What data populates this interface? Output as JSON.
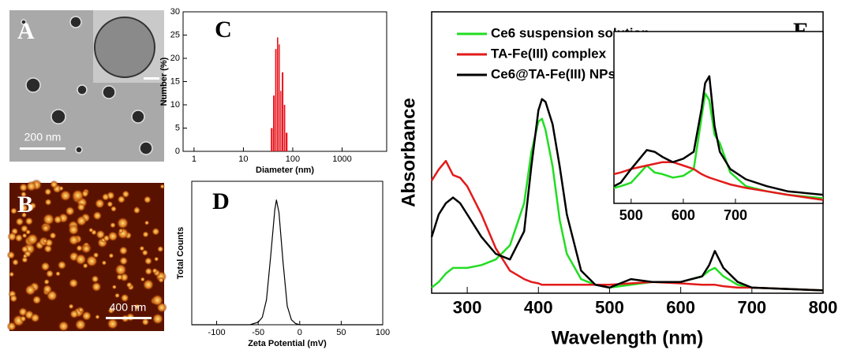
{
  "images": [
    {
      "label": "A",
      "scale_bar": "200 nm"
    },
    {
      "label": "B",
      "scale_bar": "400 nm"
    }
  ],
  "chart_data": [
    {
      "type": "histogram",
      "label": "C",
      "x_label": "Diameter (nm)",
      "y_label": "Number (%)",
      "xscale": "log",
      "xlim": [
        0.6,
        8000
      ],
      "xticks": [
        1,
        10,
        100,
        1000
      ],
      "ylim": [
        0,
        30
      ],
      "yticks": [
        0,
        5,
        10,
        15,
        20,
        25,
        30
      ],
      "bins": [
        36,
        40,
        44,
        48,
        52,
        56,
        60,
        66,
        72,
        80
      ],
      "values": [
        5,
        12,
        22,
        24.5,
        23,
        13,
        17,
        10,
        4
      ],
      "color": "#e8111a"
    },
    {
      "type": "line",
      "label": "D",
      "x_label": "Zeta Potential (mV)",
      "y_label": "Total Counts",
      "xlim": [
        -130,
        100
      ],
      "xticks": [
        -100,
        -50,
        0,
        50,
        100
      ],
      "ylim": [
        0,
        1.15
      ],
      "x": [
        -130,
        -60,
        -50,
        -45,
        -40,
        -35,
        -30,
        -28,
        -25,
        -20,
        -15,
        -10,
        -5,
        0,
        100
      ],
      "series": [
        {
          "color": "#000000",
          "values": [
            0,
            0,
            0.02,
            0.06,
            0.2,
            0.55,
            0.92,
            1,
            0.9,
            0.5,
            0.15,
            0.04,
            0.01,
            0,
            0
          ]
        }
      ]
    },
    {
      "type": "line",
      "label": "E",
      "x_label": "Wavelength (nm)",
      "y_label": "Absorbance",
      "xlim": [
        250,
        800
      ],
      "xticks": [
        300,
        400,
        500,
        600,
        700,
        800
      ],
      "ylim": [
        0,
        1
      ],
      "legend": "upper left",
      "x": [
        250,
        260,
        270,
        280,
        290,
        300,
        320,
        340,
        360,
        380,
        390,
        400,
        405,
        410,
        420,
        430,
        440,
        460,
        480,
        500,
        530,
        560,
        600,
        630,
        640,
        648,
        660,
        680,
        700,
        750,
        800
      ],
      "series": [
        {
          "name": "Ce6 suspension solution",
          "color": "#22dd22",
          "values": [
            0.02,
            0.04,
            0.07,
            0.09,
            0.09,
            0.09,
            0.1,
            0.12,
            0.17,
            0.32,
            0.5,
            0.61,
            0.62,
            0.58,
            0.45,
            0.26,
            0.14,
            0.05,
            0.03,
            0.02,
            0.03,
            0.04,
            0.04,
            0.06,
            0.08,
            0.09,
            0.06,
            0.03,
            0.02,
            0.015,
            0.01
          ]
        },
        {
          "name": "TA-Fe(III) complex",
          "color": "#e31a1a",
          "values": [
            0.4,
            0.44,
            0.47,
            0.42,
            0.41,
            0.38,
            0.28,
            0.16,
            0.08,
            0.05,
            0.04,
            0.035,
            0.03,
            0.03,
            0.03,
            0.03,
            0.03,
            0.03,
            0.03,
            0.03,
            0.035,
            0.04,
            0.035,
            0.03,
            0.03,
            0.03,
            0.025,
            0.02,
            0.02,
            0.015,
            0.01
          ]
        },
        {
          "name": "Ce6@TA-Fe(III) NPs",
          "color": "#000000",
          "values": [
            0.2,
            0.28,
            0.32,
            0.34,
            0.32,
            0.28,
            0.2,
            0.14,
            0.12,
            0.22,
            0.45,
            0.65,
            0.69,
            0.68,
            0.6,
            0.45,
            0.28,
            0.08,
            0.03,
            0.02,
            0.05,
            0.04,
            0.04,
            0.06,
            0.1,
            0.15,
            0.09,
            0.04,
            0.02,
            0.015,
            0.01
          ]
        }
      ]
    },
    {
      "type": "line",
      "xlim": [
        467,
        868
      ],
      "xticks": [
        500,
        600,
        700
      ],
      "ylim": [
        0,
        1
      ],
      "x": [
        467,
        480,
        500,
        530,
        545,
        560,
        580,
        600,
        620,
        635,
        642,
        650,
        660,
        670,
        690,
        720,
        760,
        800,
        868
      ],
      "series": [
        {
          "color": "#22dd22",
          "values": [
            0.09,
            0.1,
            0.12,
            0.22,
            0.18,
            0.17,
            0.15,
            0.16,
            0.2,
            0.5,
            0.64,
            0.6,
            0.4,
            0.35,
            0.18,
            0.1,
            0.07,
            0.05,
            0.03
          ]
        },
        {
          "color": "#e31a1a",
          "values": [
            0.17,
            0.18,
            0.2,
            0.22,
            0.23,
            0.24,
            0.24,
            0.22,
            0.2,
            0.17,
            0.16,
            0.15,
            0.14,
            0.13,
            0.11,
            0.09,
            0.07,
            0.05,
            0.02
          ]
        },
        {
          "color": "#000000",
          "values": [
            0.1,
            0.12,
            0.2,
            0.31,
            0.3,
            0.27,
            0.24,
            0.26,
            0.3,
            0.55,
            0.7,
            0.74,
            0.45,
            0.3,
            0.2,
            0.14,
            0.1,
            0.07,
            0.05
          ]
        }
      ]
    }
  ]
}
